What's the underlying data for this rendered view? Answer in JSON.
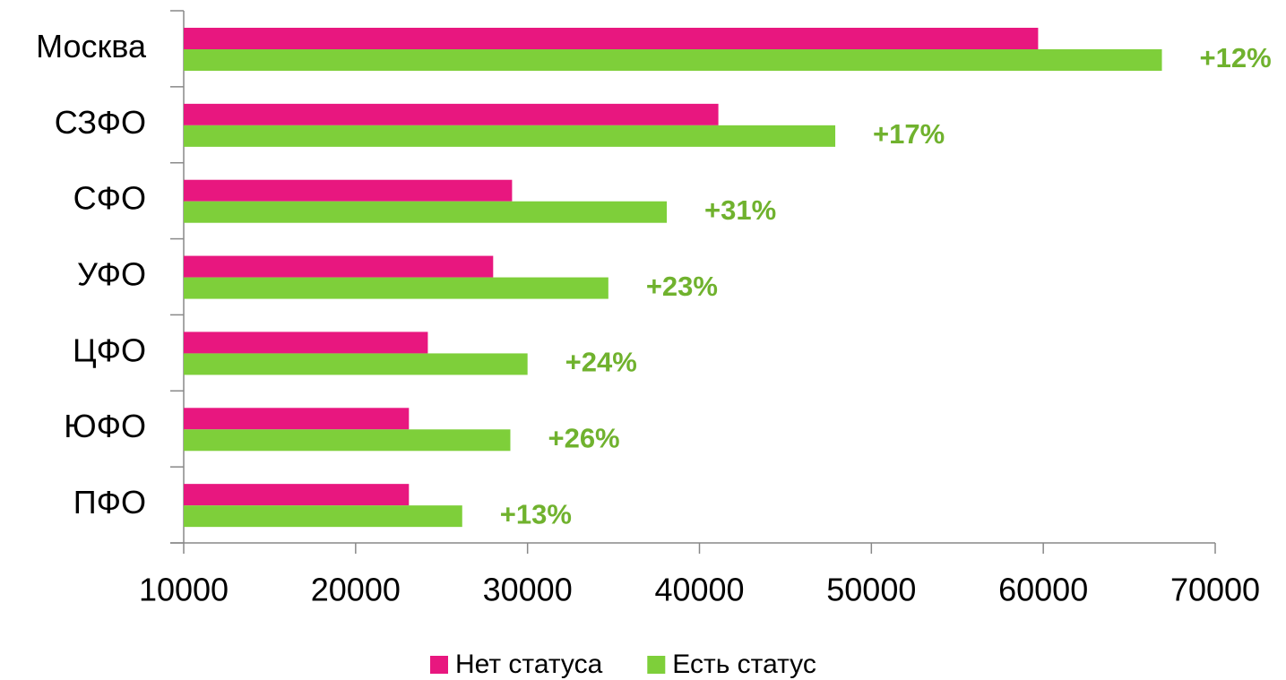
{
  "chart_data": {
    "type": "hbar",
    "categories": [
      "Москва",
      "СЗФО",
      "СФО",
      "УФО",
      "ЦФО",
      "ЮФО",
      "ПФО"
    ],
    "series": [
      {
        "name": "Нет статуса",
        "color": "#e8177f",
        "values": [
          59700,
          41100,
          29100,
          28000,
          24200,
          23100,
          23100
        ]
      },
      {
        "name": "Есть статус",
        "color": "#7ecf3a",
        "values": [
          66900,
          47900,
          38100,
          34700,
          30000,
          29000,
          26200
        ]
      }
    ],
    "annotations": [
      "+12%",
      "+17%",
      "+31%",
      "+23%",
      "+24%",
      "+26%",
      "+13%"
    ],
    "annotation_color": "#70b22e",
    "xlim": [
      10000,
      70000
    ],
    "xticks": [
      10000,
      20000,
      30000,
      40000,
      50000,
      60000,
      70000
    ],
    "legend": "bottom"
  }
}
